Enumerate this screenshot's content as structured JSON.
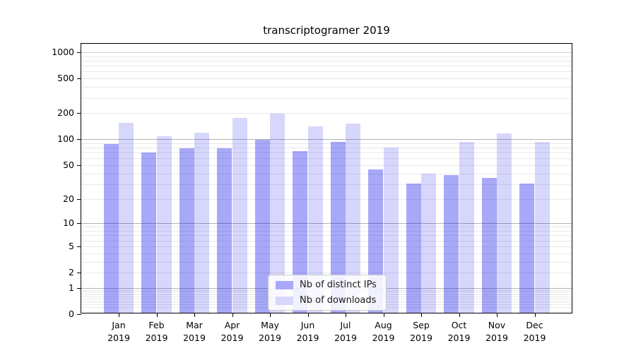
{
  "chart_data": {
    "type": "bar",
    "title": "transcriptogramer 2019",
    "categories": [
      "Jan 2019",
      "Feb 2019",
      "Mar 2019",
      "Apr 2019",
      "May 2019",
      "Jun 2019",
      "Jul 2019",
      "Aug 2019",
      "Sep 2019",
      "Oct 2019",
      "Nov 2019",
      "Dec 2019"
    ],
    "series": [
      {
        "name": "Nb of distinct IPs",
        "values": [
          85,
          67,
          75,
          75,
          95,
          70,
          90,
          43,
          29,
          37,
          34,
          29
        ],
        "color": "#a8a8fa",
        "fill": "rgba(0,0,238,0.34)"
      },
      {
        "name": "Nb of downloads",
        "values": [
          150,
          105,
          115,
          170,
          190,
          135,
          145,
          77,
          38,
          90,
          113,
          90
        ],
        "color": "#d8d8fc",
        "fill": "rgba(0,0,238,0.155)"
      }
    ],
    "yscale": "log1p",
    "ylim": [
      0,
      1250
    ],
    "y_ticks": [
      0,
      1,
      2,
      5,
      10,
      20,
      50,
      100,
      200,
      500,
      1000
    ],
    "grid": {
      "major": [
        1,
        10,
        100
      ],
      "mid": [
        1000
      ],
      "minor": [
        0.2,
        0.3,
        0.4,
        0.5,
        0.6,
        0.7,
        0.8,
        0.9,
        2,
        3,
        4,
        5,
        6,
        7,
        8,
        9,
        20,
        30,
        40,
        50,
        60,
        70,
        80,
        90,
        200,
        300,
        400,
        500,
        600,
        700,
        800,
        900
      ]
    },
    "xlabel": "",
    "ylabel": "",
    "legend_position": "lower center",
    "legend_entries": [
      "Nb of distinct IPs",
      "Nb of downloads"
    ]
  },
  "colors": {
    "background": "#ffffff",
    "spine": "#000000",
    "grid_major": "#b3b3b3",
    "grid_minor": "#e9e9e9",
    "bar_ips": "#a8a8fa",
    "bar_downloads": "#d8d8fc",
    "text": "#000000"
  }
}
